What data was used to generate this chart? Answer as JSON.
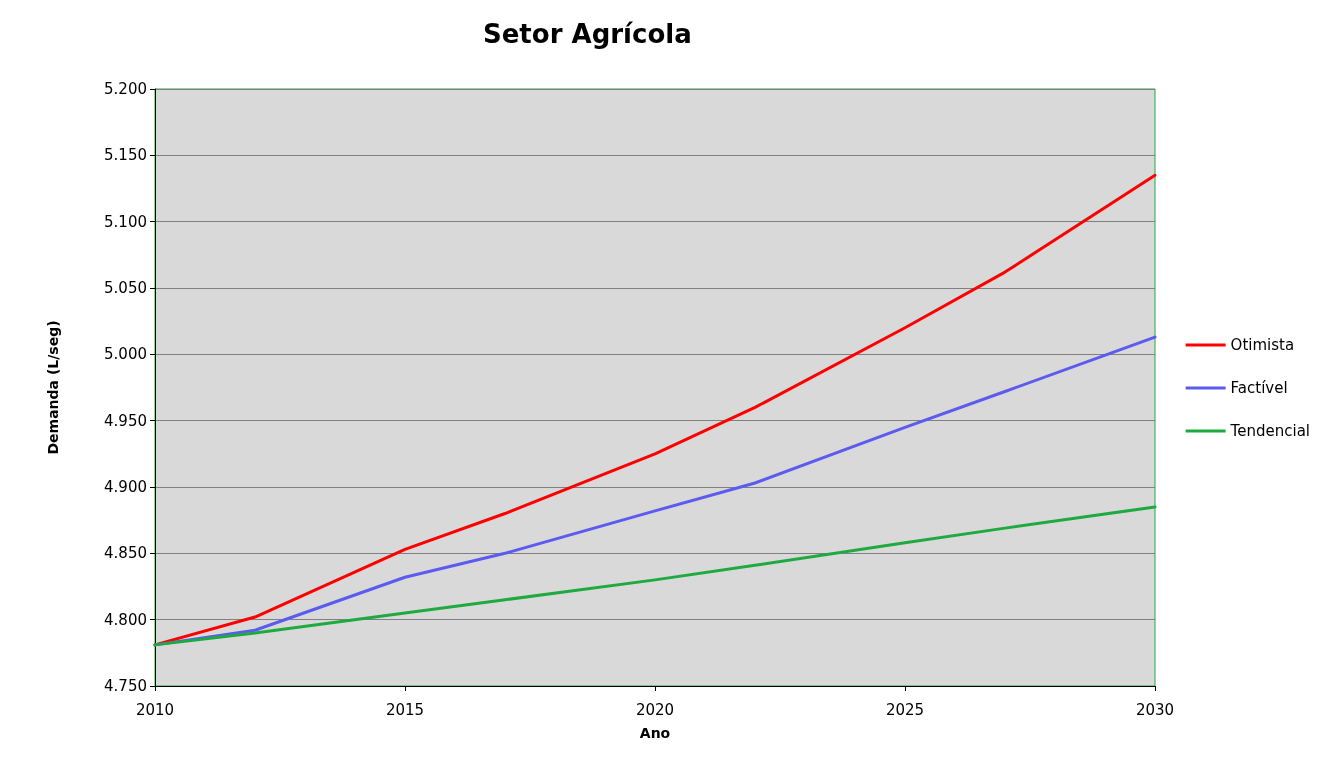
{
  "chart_data": {
    "type": "line",
    "title": "Setor Agrícola",
    "xlabel": "Ano",
    "ylabel": "Demanda (L/seg)",
    "x": [
      2010,
      2012,
      2015,
      2017,
      2020,
      2022,
      2025,
      2027,
      2030
    ],
    "series": [
      {
        "name": "Otimista",
        "color": "#ff0000",
        "values": [
          4781,
          4802,
          4853,
          4880,
          4925,
          4960,
          5020,
          5062,
          5135
        ]
      },
      {
        "name": "Factível",
        "color": "#5b5bf0",
        "values": [
          4781,
          4792,
          4832,
          4850,
          4882,
          4903,
          4945,
          4972,
          5013
        ]
      },
      {
        "name": "Tendencial",
        "color": "#1faa3f",
        "values": [
          4781,
          4790,
          4805,
          4815,
          4830,
          4841,
          4858,
          4869,
          4885
        ]
      }
    ],
    "xlim": [
      2010,
      2030
    ],
    "xticks": [
      2010,
      2015,
      2020,
      2025,
      2030
    ],
    "ylim": [
      4750,
      5200
    ],
    "yticks": [
      {
        "value": 4750,
        "label": "4.750"
      },
      {
        "value": 4800,
        "label": "4.800"
      },
      {
        "value": 4850,
        "label": "4.850"
      },
      {
        "value": 4900,
        "label": "4.900"
      },
      {
        "value": 4950,
        "label": "4.950"
      },
      {
        "value": 5000,
        "label": "5.000"
      },
      {
        "value": 5050,
        "label": "5.050"
      },
      {
        "value": 5100,
        "label": "5.100"
      },
      {
        "value": 5150,
        "label": "5.150"
      },
      {
        "value": 5200,
        "label": "5.200"
      }
    ],
    "grid": "y",
    "legend": "right",
    "marker": "none",
    "line_style": "solid"
  }
}
